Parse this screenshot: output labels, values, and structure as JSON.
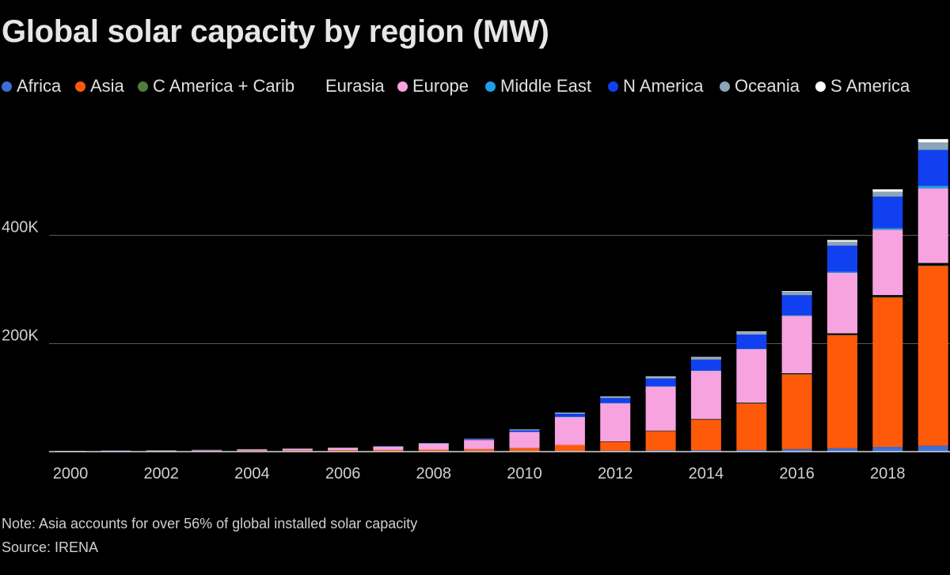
{
  "title": "Global solar capacity by region (MW)",
  "legend": [
    {
      "name": "Africa",
      "color": "#3b6fd6"
    },
    {
      "name": "Asia",
      "color": "#ff5a0a"
    },
    {
      "name": "C America + Carib",
      "color": "#4f7f3a"
    },
    {
      "name": "Eurasia",
      "color": "#000000"
    },
    {
      "name": "Europe",
      "color": "#f7a3df"
    },
    {
      "name": "Middle East",
      "color": "#1ca0e8"
    },
    {
      "name": "N America",
      "color": "#1140f0"
    },
    {
      "name": "Oceania",
      "color": "#8aa6b8"
    },
    {
      "name": "S America",
      "color": "#ffffff"
    }
  ],
  "chart_data": {
    "type": "bar",
    "stacked": true,
    "title": "Global solar capacity by region (MW)",
    "xlabel": "",
    "ylabel": "",
    "ylim": [
      0,
      600000
    ],
    "yticks": [
      200000,
      400000
    ],
    "ytick_labels": [
      "200K",
      "400K"
    ],
    "xtick_labels": [
      "2000",
      "2002",
      "2004",
      "2006",
      "2008",
      "2010",
      "2012",
      "2014",
      "2016",
      "2018"
    ],
    "categories": [
      "2000",
      "2001",
      "2002",
      "2003",
      "2004",
      "2005",
      "2006",
      "2007",
      "2008",
      "2009",
      "2010",
      "2011",
      "2012",
      "2013",
      "2014",
      "2015",
      "2016",
      "2017",
      "2018",
      "2019"
    ],
    "series": [
      {
        "name": "Africa",
        "color": "#3b6fd6",
        "values": [
          10,
          20,
          30,
          50,
          80,
          100,
          150,
          200,
          300,
          400,
          500,
          700,
          1000,
          1500,
          1800,
          2300,
          4000,
          5500,
          8000,
          10000
        ]
      },
      {
        "name": "Asia",
        "color": "#ff5a0a",
        "values": [
          330,
          450,
          650,
          950,
          1200,
          1500,
          1800,
          2100,
          2600,
          3500,
          5500,
          11000,
          17000,
          36000,
          57000,
          86000,
          138000,
          209000,
          276000,
          332000
        ]
      },
      {
        "name": "C America + Carib",
        "color": "#4f7f3a",
        "values": [
          0,
          0,
          0,
          0,
          0,
          0,
          0,
          0,
          0,
          0,
          0,
          0,
          0,
          100,
          200,
          300,
          500,
          800,
          1000,
          1300
        ]
      },
      {
        "name": "Eurasia",
        "color": "#000000",
        "values": [
          0,
          0,
          0,
          0,
          0,
          0,
          0,
          0,
          0,
          0,
          0,
          0,
          100,
          200,
          500,
          1000,
          1500,
          2500,
          3500,
          4500
        ]
      },
      {
        "name": "Europe",
        "color": "#f7a3df",
        "values": [
          200,
          400,
          600,
          1100,
          2000,
          2800,
          4000,
          6000,
          11000,
          17000,
          30000,
          52000,
          71000,
          82000,
          89000,
          99000,
          106000,
          112000,
          121000,
          138000
        ]
      },
      {
        "name": "Middle East",
        "color": "#1ca0e8",
        "values": [
          0,
          0,
          0,
          0,
          0,
          0,
          0,
          0,
          0,
          0,
          100,
          200,
          300,
          500,
          700,
          900,
          1300,
          2000,
          3000,
          5000
        ]
      },
      {
        "name": "N America",
        "color": "#1140f0",
        "values": [
          100,
          200,
          300,
          400,
          500,
          600,
          700,
          900,
          1300,
          1900,
          3100,
          5600,
          8800,
          14000,
          20000,
          26000,
          37000,
          48000,
          58000,
          66000
        ]
      },
      {
        "name": "Oceania",
        "color": "#8aa6b8",
        "values": [
          20,
          30,
          40,
          50,
          60,
          70,
          80,
          100,
          150,
          300,
          700,
          1500,
          2500,
          3500,
          4200,
          5000,
          6000,
          7500,
          9000,
          14000
        ]
      },
      {
        "name": "S America",
        "color": "#ffffff",
        "values": [
          0,
          0,
          0,
          0,
          0,
          0,
          0,
          0,
          0,
          0,
          100,
          200,
          300,
          500,
          800,
          1000,
          1500,
          3000,
          4500,
          6000
        ]
      }
    ],
    "grid": true
  },
  "notes": {
    "note": "Note: Asia accounts for over 56% of global installed solar capacity",
    "source": "Source: IRENA"
  }
}
